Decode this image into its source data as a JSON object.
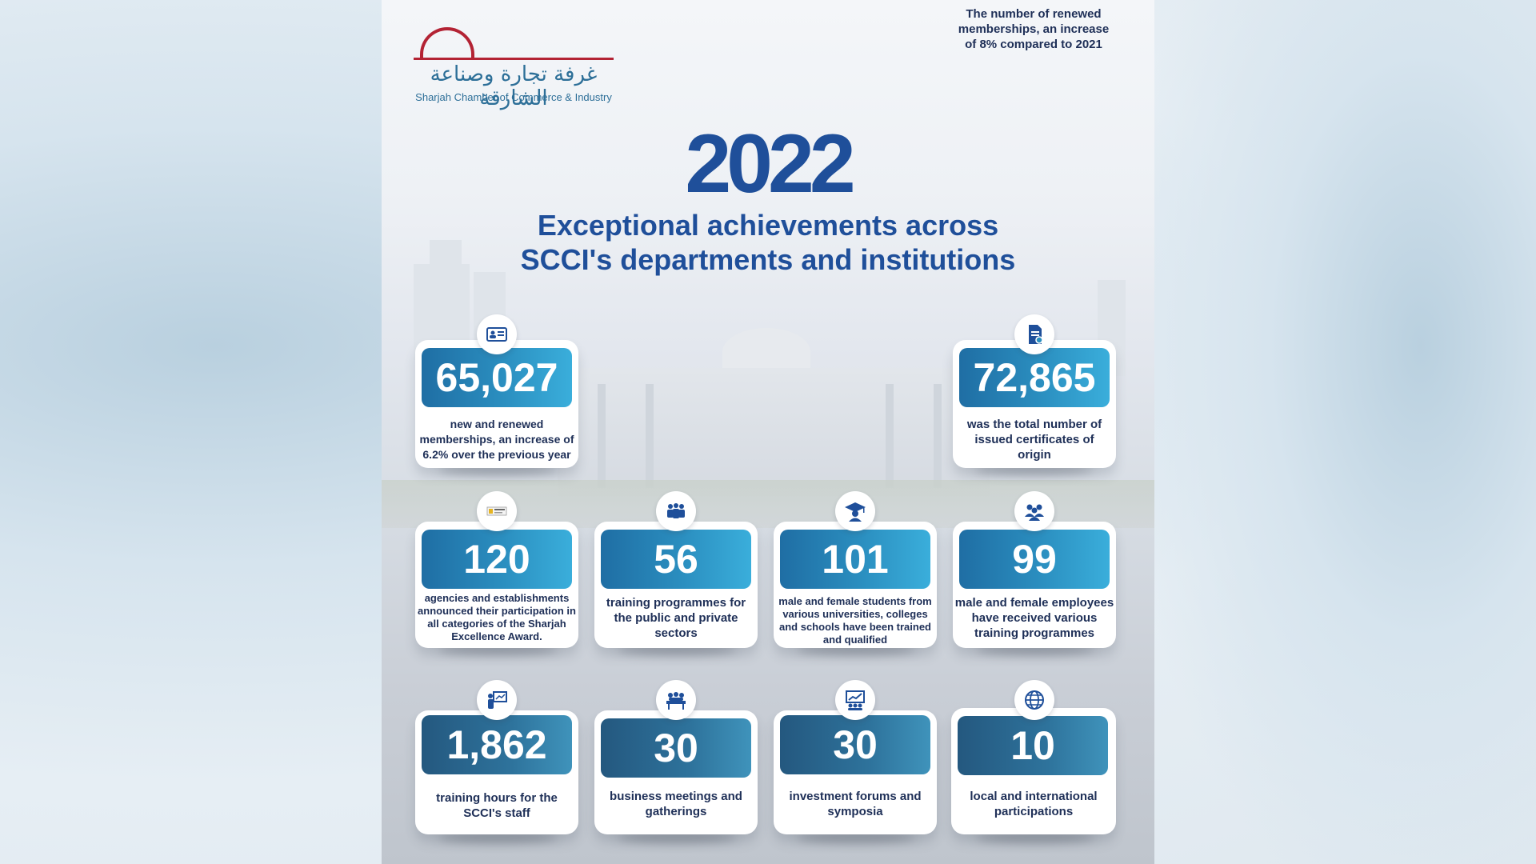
{
  "brand": {
    "arabic_name": "غرفة تجارة وصناعة الشارقة",
    "english_name": "Sharjah Chamber of Commerce & Industry",
    "accent_color": "#b32334",
    "primary_color": "#1f4f9a"
  },
  "top_note": "The number of renewed memberships, an increase of 8% compared to 2021",
  "year": "2022",
  "headline_line1": "Exceptional achievements across",
  "headline_line2": "SCCI's departments and institutions",
  "stats": [
    {
      "value": "65,027",
      "text": "new and renewed memberships, an increase of 6.2% over the previous year",
      "icon": "id-card-icon"
    },
    {
      "value": "72,865",
      "text": "was the total number of issued certificates of origin",
      "icon": "certificate-document-icon"
    },
    {
      "value": "120",
      "text": "agencies and establishments announced their participation in all categories of the Sharjah Excellence Award.",
      "icon": "excellence-award-logo-icon"
    },
    {
      "value": "56",
      "text": "training programmes for the public and private sectors",
      "icon": "group-training-icon"
    },
    {
      "value": "101",
      "text": "male and female students from various universities, colleges and schools have been trained and qualified",
      "icon": "graduate-cap-icon"
    },
    {
      "value": "99",
      "text": "male and female employees have received various training programmes",
      "icon": "employees-group-icon"
    },
    {
      "value": "1,862",
      "text": "training hours for the SCCI's staff",
      "icon": "presentation-board-icon"
    },
    {
      "value": "30",
      "text": "business meetings and gatherings",
      "icon": "meeting-table-icon"
    },
    {
      "value": "30",
      "text": "investment forums and symposia",
      "icon": "growth-chart-icon"
    },
    {
      "value": "10",
      "text": "local and international participations",
      "icon": "globe-icon"
    }
  ]
}
